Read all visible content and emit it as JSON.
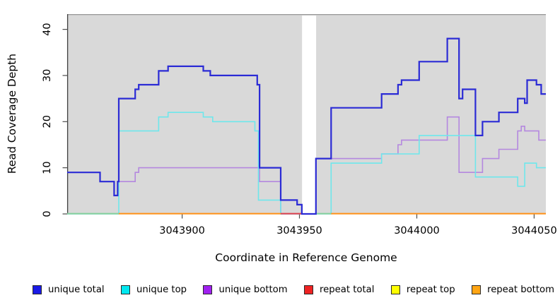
{
  "figure": {
    "y_axis_title": "Read Coverage Depth",
    "x_axis_title": "Coordinate in Reference Genome"
  },
  "legend": {
    "items": [
      {
        "id": "unique-total",
        "label": "unique total",
        "color": "#1A1AE6"
      },
      {
        "id": "unique-top",
        "label": "unique top",
        "color": "#00E8F0"
      },
      {
        "id": "unique-bottom",
        "label": "unique bottom",
        "color": "#A020F0"
      },
      {
        "id": "repeat-total",
        "label": "repeat total",
        "color": "#EE2222"
      },
      {
        "id": "repeat-top",
        "label": "repeat top",
        "color": "#FFFF00"
      },
      {
        "id": "repeat-bottom",
        "label": "repeat bottom",
        "color": "#FFA514"
      }
    ]
  },
  "chart_data": {
    "type": "line",
    "step": true,
    "title": "",
    "xlabel": "Coordinate in Reference Genome",
    "ylabel": "Read Coverage Depth",
    "x_range": [
      3043851,
      3044055
    ],
    "y_range": [
      0,
      43.3
    ],
    "plot_bg": "#D9D9D9",
    "grid": false,
    "legend_position": "bottom",
    "x_ticks": [
      {
        "coord": 3043900,
        "label": "3043900"
      },
      {
        "coord": 3043950,
        "label": "3043950"
      },
      {
        "coord": 3044000,
        "label": "3044000"
      },
      {
        "coord": 3044050,
        "label": "3044050"
      }
    ],
    "y_ticks": [
      {
        "value": 0,
        "label": "0"
      },
      {
        "value": 10,
        "label": "10"
      },
      {
        "value": 20,
        "label": "20"
      },
      {
        "value": 30,
        "label": "30"
      },
      {
        "value": 40,
        "label": "40"
      }
    ],
    "gap_region": {
      "from": 3043951.1,
      "to": 3043957.1
    },
    "series": [
      {
        "id": "unique-bottom",
        "name": "unique bottom",
        "color": "#B488DF",
        "width": 1.6,
        "points": [
          [
            3043873,
            7
          ],
          [
            3043880,
            9
          ],
          [
            3043881.5,
            10
          ],
          [
            3043933,
            7
          ],
          [
            3043942,
            0
          ],
          [
            3043957,
            12
          ],
          [
            3043985,
            13
          ],
          [
            3043992,
            15
          ],
          [
            3043993.5,
            16
          ],
          [
            3044013,
            21
          ],
          [
            3044018,
            9
          ],
          [
            3044028,
            12
          ],
          [
            3044035,
            14
          ],
          [
            3044043,
            18
          ],
          [
            3044044.5,
            19
          ],
          [
            3044046,
            18
          ],
          [
            3044052,
            16
          ]
        ]
      },
      {
        "id": "unique-top",
        "name": "unique top",
        "color": "#6EE7EC",
        "width": 1.6,
        "points": [
          [
            3043851,
            0
          ],
          [
            3043873,
            18
          ],
          [
            3043890,
            21
          ],
          [
            3043894,
            22
          ],
          [
            3043909,
            21
          ],
          [
            3043913,
            20
          ],
          [
            3043931,
            18
          ],
          [
            3043932.5,
            3
          ],
          [
            3043942,
            0
          ],
          [
            3043963.5,
            11
          ],
          [
            3043985,
            13
          ],
          [
            3044001,
            17
          ],
          [
            3044025,
            8
          ],
          [
            3044043,
            6
          ],
          [
            3044046,
            11
          ],
          [
            3044051,
            10
          ]
        ]
      },
      {
        "id": "repeat-total",
        "name": "repeat total",
        "color": "#E0404C",
        "width": 1.6,
        "render": false,
        "points": [
          [
            3043851,
            0
          ]
        ]
      },
      {
        "id": "repeat-top",
        "name": "repeat top",
        "color": "#FFFF00",
        "width": 1.6,
        "render": false,
        "points": [
          [
            3043851,
            0
          ]
        ]
      },
      {
        "id": "repeat-bottom",
        "name": "repeat bottom",
        "color": "#FF9016",
        "width": 1.6,
        "render": false,
        "points": [
          [
            3043851,
            0
          ]
        ]
      },
      {
        "id": "unique-total",
        "name": "unique total",
        "color": "#2B2BD5",
        "width": 2.2,
        "points": [
          [
            3043851,
            9
          ],
          [
            3043865,
            7
          ],
          [
            3043871,
            4
          ],
          [
            3043872.5,
            7
          ],
          [
            3043873,
            25
          ],
          [
            3043880,
            27
          ],
          [
            3043881.5,
            28
          ],
          [
            3043890,
            31
          ],
          [
            3043894,
            32
          ],
          [
            3043909,
            31
          ],
          [
            3043912,
            30
          ],
          [
            3043932,
            28
          ],
          [
            3043933,
            10
          ],
          [
            3043942,
            3
          ],
          [
            3043949,
            2
          ],
          [
            3043951,
            0
          ],
          [
            3043957,
            12
          ],
          [
            3043963.5,
            23
          ],
          [
            3043985,
            26
          ],
          [
            3043992,
            28
          ],
          [
            3043993.5,
            29
          ],
          [
            3044001,
            33
          ],
          [
            3044013,
            38
          ],
          [
            3044018,
            25
          ],
          [
            3044019.5,
            27
          ],
          [
            3044025,
            17
          ],
          [
            3044028,
            20
          ],
          [
            3044035,
            22
          ],
          [
            3044043,
            25
          ],
          [
            3044046,
            24
          ],
          [
            3044047,
            29
          ],
          [
            3044051,
            28
          ],
          [
            3044053,
            26
          ]
        ]
      }
    ],
    "baseline_segments": [
      {
        "x1": 3043851,
        "x2": 3043873,
        "color": "#85CF9C"
      },
      {
        "x1": 3043873,
        "x2": 3043942,
        "color": "#FF9016"
      },
      {
        "x1": 3043942,
        "x2": 3043951.1,
        "color": "#E0404C"
      },
      {
        "x1": 3043957.1,
        "x2": 3043963.5,
        "color": "#85CF9C"
      },
      {
        "x1": 3043963.5,
        "x2": 3044055,
        "color": "#FF9016"
      }
    ]
  }
}
